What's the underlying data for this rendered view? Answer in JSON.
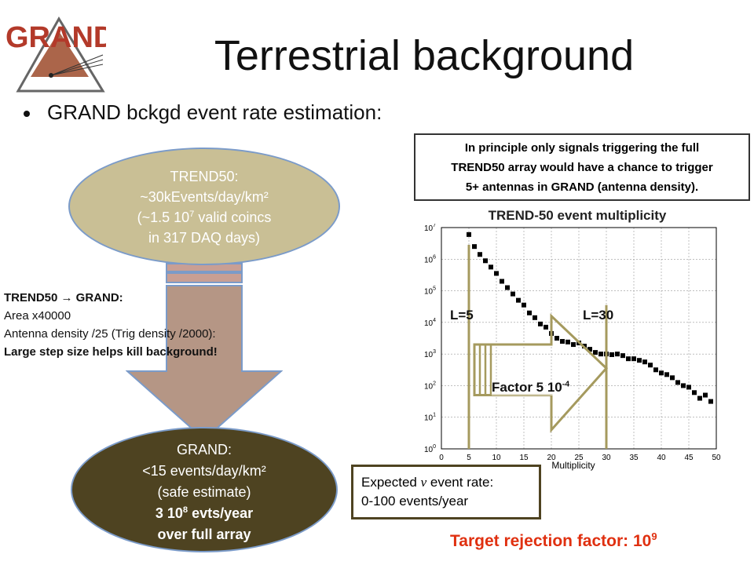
{
  "slide": {
    "title": "Terrestrial background",
    "bullet": "GRAND bckgd event rate estimation:"
  },
  "logo": {
    "text": "GRAND"
  },
  "trend50": {
    "line1": "TREND50:",
    "line2": "~30kEvents/day/km²",
    "line3_pre": "(~1.5 10",
    "line3_sup": "7",
    "line3_post": " valid coincs",
    "line4": "in 317 DAQ days)"
  },
  "conversion": {
    "heading": "TREND50 → GRAND:",
    "line1": "Area x40000",
    "line2": "Antenna density /25 (Trig density  /2000):",
    "line3": "Large step size helps kill background!"
  },
  "grand": {
    "line1": "GRAND:",
    "line2": "<15 events/day/km²",
    "line3": "(safe estimate)",
    "line4_pre": "3 10",
    "line4_sup": "8",
    "line4_post": " evts/year",
    "line5": "over full array"
  },
  "note": {
    "line1": "In principle only signals triggering the full",
    "line2": "TREND50 array would have a chance to trigger",
    "line3": "5+ antennas in GRAND (antenna density)."
  },
  "plot": {
    "title": "TREND-50 event multiplicity",
    "l5_label": "L=5",
    "l30_label": "L=30",
    "factor_pre": "Factor 5 10",
    "factor_sup": "-4"
  },
  "expected": {
    "line1_pre": "Expected ",
    "line1_nu": "ν",
    "line1_post": " event rate:",
    "line2": "0-100 events/year"
  },
  "target": {
    "pre": "Target rejection factor: 10",
    "sup": "9"
  },
  "chart_data": {
    "type": "scatter",
    "title": "",
    "xlabel": "Multiplicity",
    "ylabel": "",
    "xlim": [
      0,
      50
    ],
    "ylim_log10": [
      0,
      7
    ],
    "yscale": "log",
    "grid": true,
    "x_ticks": [
      "0",
      "5",
      "10",
      "15",
      "20",
      "25",
      "30",
      "35",
      "40",
      "45",
      "50"
    ],
    "y_tick_exponents": [
      "0",
      "1",
      "2",
      "3",
      "4",
      "5",
      "6",
      "7"
    ],
    "series": [
      {
        "x": [
          5,
          6,
          7,
          8,
          9,
          10,
          11,
          12,
          13,
          14,
          15,
          16,
          17,
          18,
          19,
          20,
          21,
          22,
          23,
          24,
          25,
          26,
          27,
          28,
          29,
          30,
          31,
          32,
          33,
          34,
          35,
          36,
          37,
          38,
          39,
          40,
          41,
          42,
          43,
          44,
          45,
          46,
          47,
          48,
          49
        ],
        "y_log10": [
          6.78,
          6.4,
          6.15,
          5.95,
          5.75,
          5.55,
          5.3,
          5.1,
          4.9,
          4.7,
          4.55,
          4.3,
          4.15,
          3.95,
          3.85,
          3.65,
          3.5,
          3.4,
          3.38,
          3.3,
          3.35,
          3.25,
          3.15,
          3.05,
          3.0,
          3.0,
          2.98,
          3.0,
          2.95,
          2.85,
          2.85,
          2.8,
          2.75,
          2.65,
          2.5,
          2.4,
          2.35,
          2.25,
          2.1,
          2.0,
          1.95,
          1.78,
          1.6,
          1.7,
          1.5
        ]
      }
    ]
  }
}
